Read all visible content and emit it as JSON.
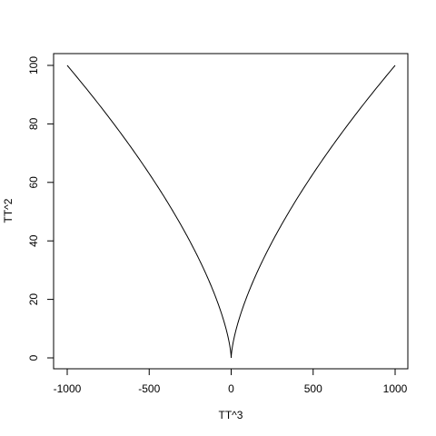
{
  "chart_data": {
    "type": "line",
    "title": "",
    "xlabel": "TT^3",
    "ylabel": "TT^2",
    "xlim": [
      -1000,
      1000
    ],
    "ylim": [
      0,
      100
    ],
    "x_ticks": [
      -1000,
      -500,
      0,
      500,
      1000
    ],
    "y_ticks": [
      0,
      20,
      40,
      60,
      80,
      100
    ],
    "x_tick_labels": [
      "-1000",
      "-500",
      "0",
      "500",
      "1000"
    ],
    "y_tick_labels": [
      "0",
      "20",
      "40",
      "60",
      "80",
      "100"
    ],
    "grid": false,
    "series": [
      {
        "color": "#000000",
        "points": [
          {
            "x": -1000,
            "y": 100
          },
          {
            "x": -729,
            "y": 81
          },
          {
            "x": -512,
            "y": 64
          },
          {
            "x": -343,
            "y": 49
          },
          {
            "x": -216,
            "y": 36
          },
          {
            "x": -125,
            "y": 25
          },
          {
            "x": -64,
            "y": 16
          },
          {
            "x": -27,
            "y": 9
          },
          {
            "x": -8,
            "y": 4
          },
          {
            "x": -1,
            "y": 1
          },
          {
            "x": 0,
            "y": 0
          },
          {
            "x": 1,
            "y": 1
          },
          {
            "x": 8,
            "y": 4
          },
          {
            "x": 27,
            "y": 9
          },
          {
            "x": 64,
            "y": 16
          },
          {
            "x": 125,
            "y": 25
          },
          {
            "x": 216,
            "y": 36
          },
          {
            "x": 343,
            "y": 49
          },
          {
            "x": 512,
            "y": 64
          },
          {
            "x": 729,
            "y": 81
          },
          {
            "x": 1000,
            "y": 100
          }
        ]
      }
    ]
  }
}
